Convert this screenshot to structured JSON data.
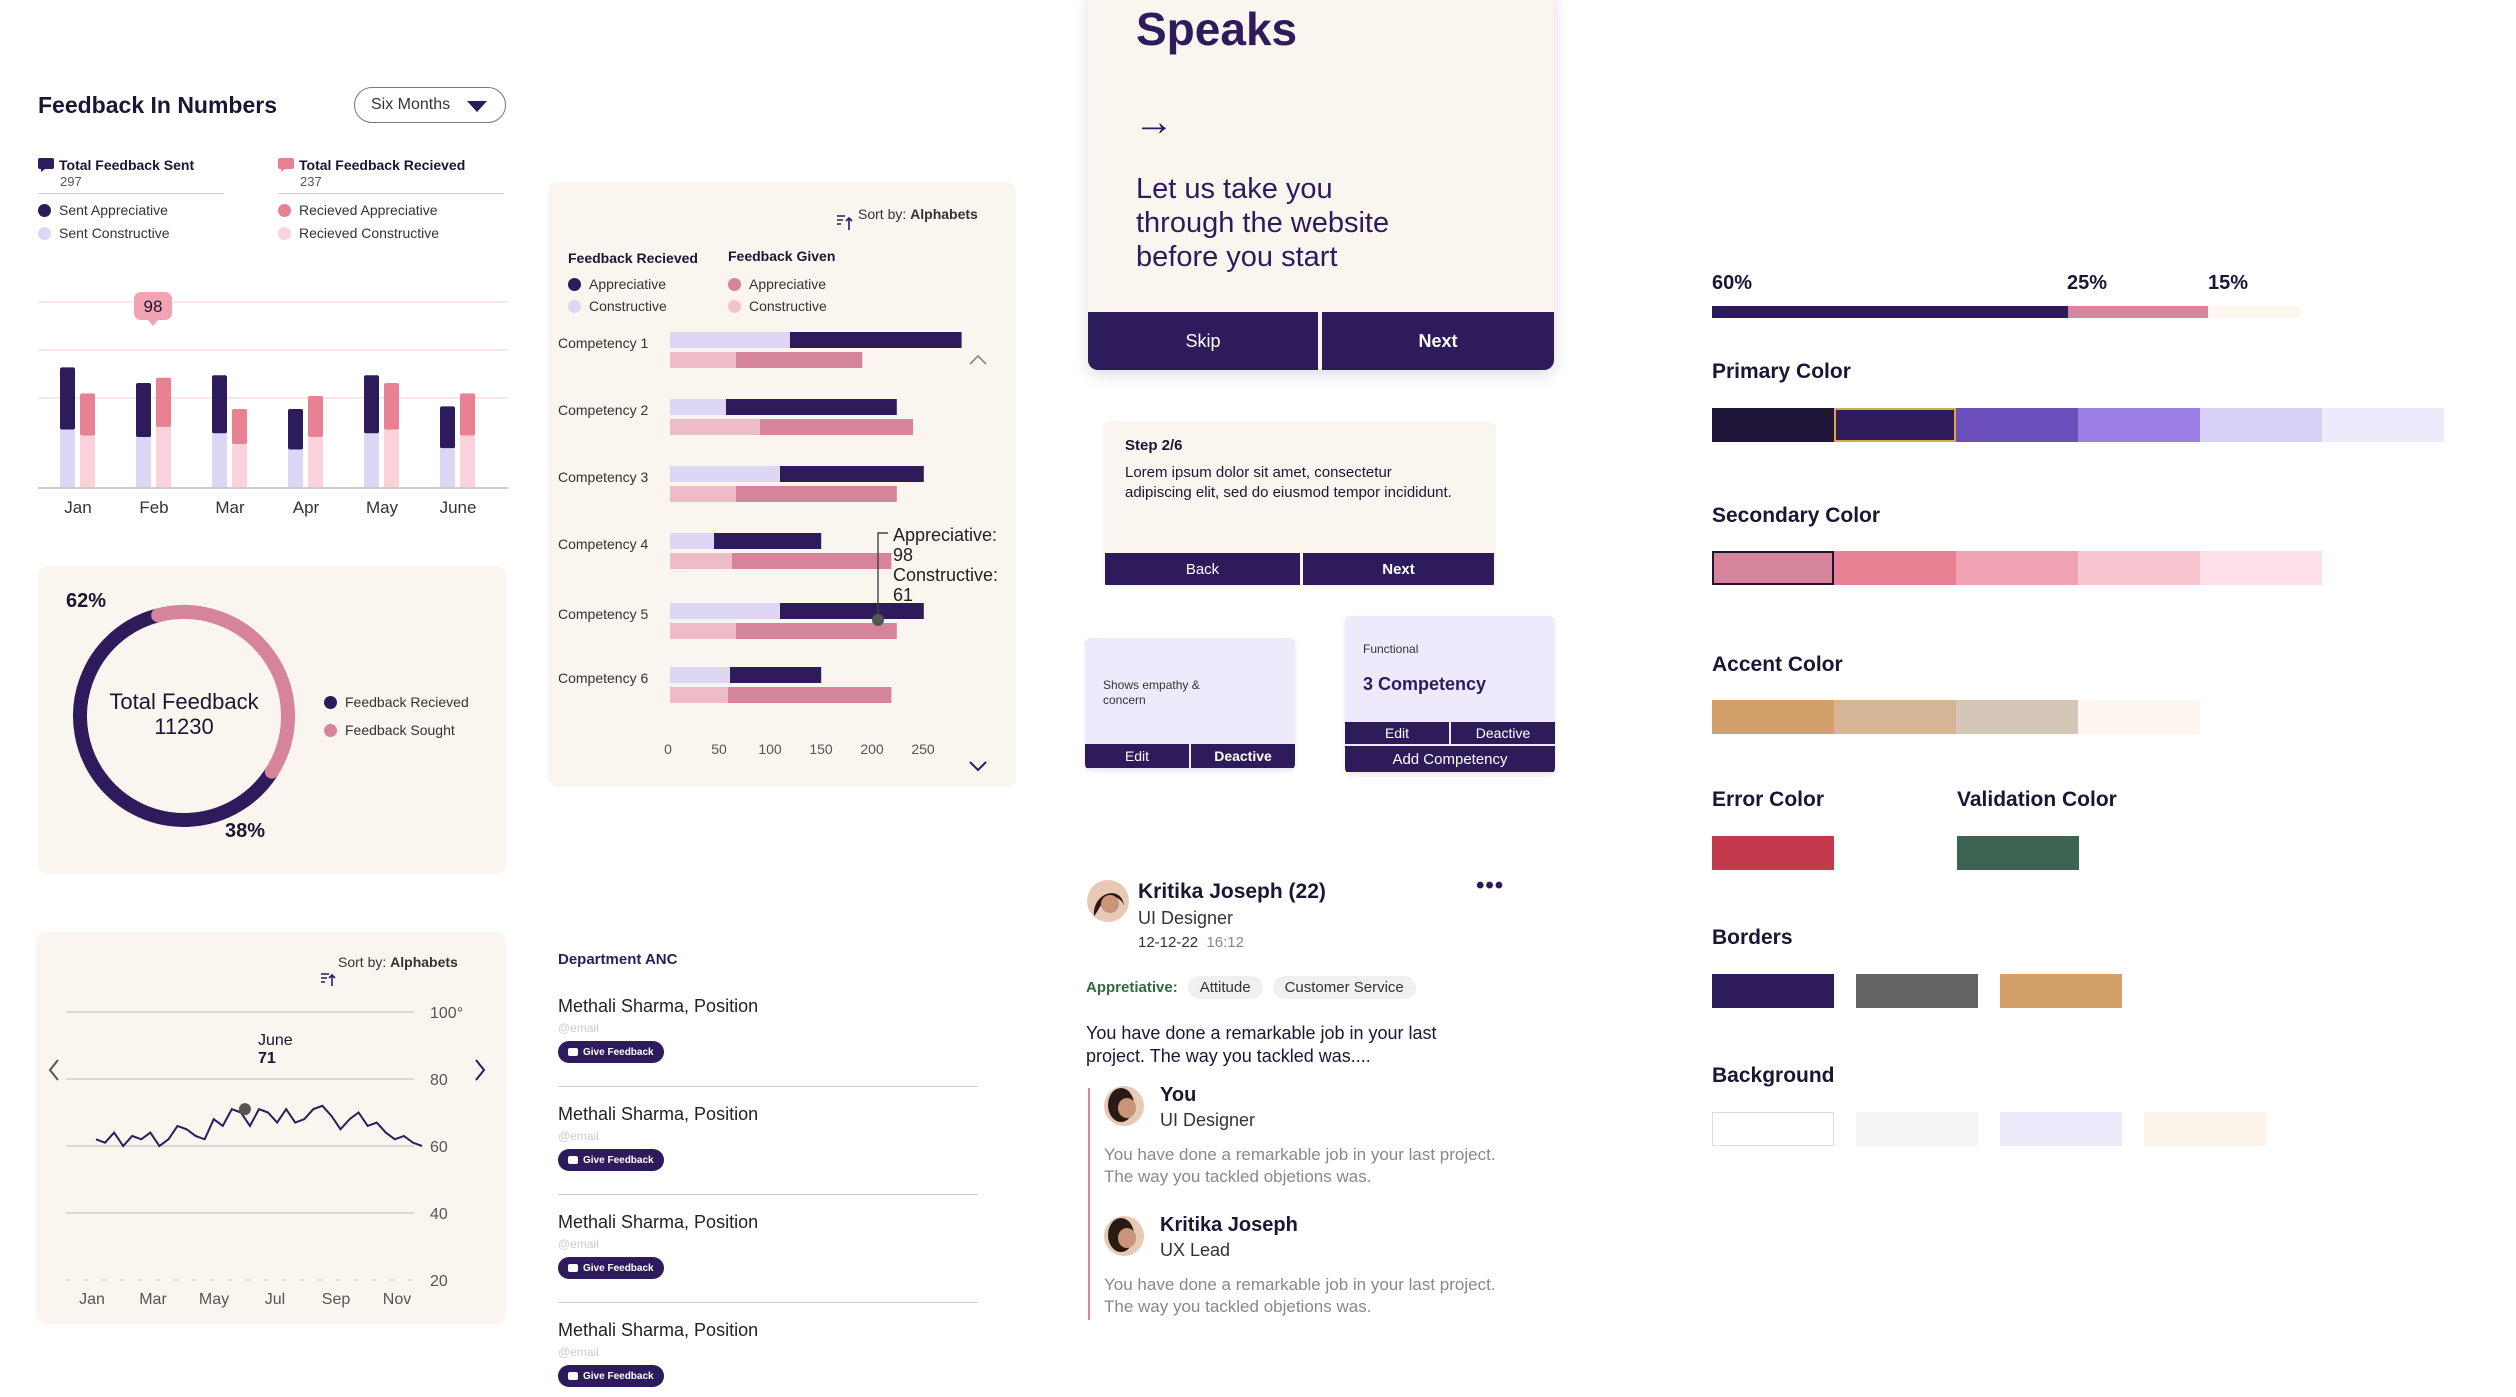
{
  "overview": {
    "title": "Feedback  In Numbers",
    "period": "Six Months",
    "sent": {
      "label": "Total Feedback Sent",
      "count": "297",
      "legend": [
        "Sent Appreciative",
        "Sent Constructive"
      ]
    },
    "received": {
      "label": "Total Feedback Recieved",
      "count": "237",
      "legend": [
        "Recieved Appreciative",
        "Recieved Constructive"
      ]
    },
    "bar_highlight": "98"
  },
  "donut": {
    "pct_top": "62%",
    "pct_bottom": "38%",
    "center_label": "Total Feedback",
    "center_value": "11230",
    "legend": [
      "Feedback Recieved",
      "Feedback Sought"
    ]
  },
  "line_card": {
    "sort_prefix": "Sort by:",
    "sort_value": "Alphabets",
    "tooltip_month": "June",
    "tooltip_value": "71"
  },
  "competency_card": {
    "sort_prefix": "Sort by:",
    "sort_value": "Alphabets",
    "legend_recieved_title": "Feedback Recieved",
    "legend_given_title": "Feedback Given",
    "legend_items": [
      "Appreciative",
      "Constructive"
    ],
    "tooltip": {
      "line1": "Appreciative:",
      "line2": "98",
      "line3": "Constructive:",
      "line4": "61"
    }
  },
  "department": {
    "title": "Department ANC",
    "people": [
      {
        "name": "Methali Sharma, Position",
        "email": "@email",
        "action": "Give Feedback"
      },
      {
        "name": "Methali Sharma, Position",
        "email": "@email",
        "action": "Give Feedback"
      },
      {
        "name": "Methali Sharma, Position",
        "email": "@email",
        "action": "Give Feedback"
      },
      {
        "name": "Methali Sharma, Position",
        "email": "@email",
        "action": "Give Feedback"
      }
    ]
  },
  "onboarding": {
    "heading": "Speaks",
    "arrow": "→",
    "body": "Let us take you through the website before you start",
    "skip": "Skip",
    "next": "Next"
  },
  "step": {
    "label": "Step 2/6",
    "text": "Lorem ipsum dolor sit amet, consectetur adipiscing elit, sed do eiusmod tempor incididunt.",
    "back": "Back",
    "next": "Next"
  },
  "mini_card_1": {
    "text": "Shows empathy & concern",
    "edit": "Edit",
    "deactive": "Deactive"
  },
  "mini_card_2": {
    "label": "Functional",
    "title": "3 Competency",
    "edit": "Edit",
    "deactive": "Deactive",
    "add": "Add Competency"
  },
  "post": {
    "name": "Kritika Joseph (22)",
    "role": "UI Designer",
    "date": "12-12-22",
    "time": "16:12",
    "type": "Appretiative:",
    "tags": [
      "Attitude",
      "Customer Service"
    ],
    "text": "You have done a remarkable job in your last project. The way you tackled was....",
    "menu": "•••",
    "replies": [
      {
        "name": "You",
        "role": "UI Designer",
        "text": "You have done a remarkable job in your last project. The way you tackled objetions was."
      },
      {
        "name": "Kritika Joseph",
        "role": "UX Lead",
        "text": "You have done a remarkable job in your last project. The way you tackled objetions was."
      }
    ]
  },
  "palette": {
    "ratio": [
      "60%",
      "25%",
      "15%"
    ],
    "primary_title": "Primary Color",
    "secondary_title": "Secondary Color",
    "accent_title": "Accent Color",
    "error_title": "Error Color",
    "validation_title": "Validation Color",
    "borders_title": "Borders",
    "background_title": "Background",
    "primary": [
      "#1f1538",
      "#2e1b5c",
      "#6b4fbb",
      "#9b7ee6",
      "#d9d0f7",
      "#eeeafc"
    ],
    "secondary": [
      "#d6849b",
      "#e88194",
      "#f1a3b4",
      "#f7c6d1",
      "#fde1e8"
    ],
    "accent": [
      "#d4a06a",
      "#d6b596",
      "#d4c7b8",
      "#fcf6ee"
    ],
    "error": "#c23a4b",
    "validation": "#3d6352",
    "borders": [
      "#2e1b5c",
      "#646464",
      "#d4a06a"
    ],
    "background": [
      "#ffffff",
      "#f4f4f4",
      "#eeeafc",
      "#fcf4ea"
    ]
  },
  "chart_data": [
    {
      "type": "bar",
      "categories": [
        "Jan",
        "Feb",
        "Mar",
        "Apr",
        "May",
        "June"
      ],
      "series": [
        {
          "values": [
            46,
            40,
            43,
            30,
            43,
            31
          ]
        },
        {
          "values": [
            36,
            42,
            30,
            35,
            40,
            36
          ]
        }
      ],
      "annotations": [
        "98"
      ]
    },
    {
      "type": "pie",
      "labels": [
        "Feedback Recieved",
        "Feedback Sought"
      ],
      "values": [
        62,
        38
      ],
      "center": "11230"
    },
    {
      "type": "line",
      "x_ticks": [
        "Jan",
        "Mar",
        "May",
        "Jul",
        "Sep",
        "Nov"
      ],
      "y_ticks": [
        "100°",
        "80",
        "60",
        "40",
        "20"
      ],
      "ylim": [
        20,
        100
      ],
      "values": [
        62,
        61,
        64,
        60,
        63,
        62,
        64,
        60,
        62,
        66,
        65,
        63,
        62,
        68,
        66,
        71,
        70,
        66,
        71,
        70,
        67,
        71,
        67,
        68,
        71,
        72,
        69,
        65,
        68,
        70,
        66,
        67,
        64,
        62,
        63,
        61,
        60
      ],
      "annotations": [
        "June",
        "71"
      ]
    },
    {
      "type": "bar",
      "categories": [
        "Competency 1",
        "Competency 2",
        "Competency 3",
        "Competency 4",
        "Competency 5",
        "Competency 6"
      ],
      "x_ticks": [
        "0",
        "50",
        "100",
        "150",
        "200",
        "250"
      ],
      "series": [
        {
          "name": "Appreciative",
          "values": [
            270,
            210,
            235,
            140,
            235,
            140
          ]
        },
        {
          "name": "Constructive",
          "values": [
            178,
            225,
            210,
            205,
            210,
            205
          ]
        }
      ]
    }
  ]
}
